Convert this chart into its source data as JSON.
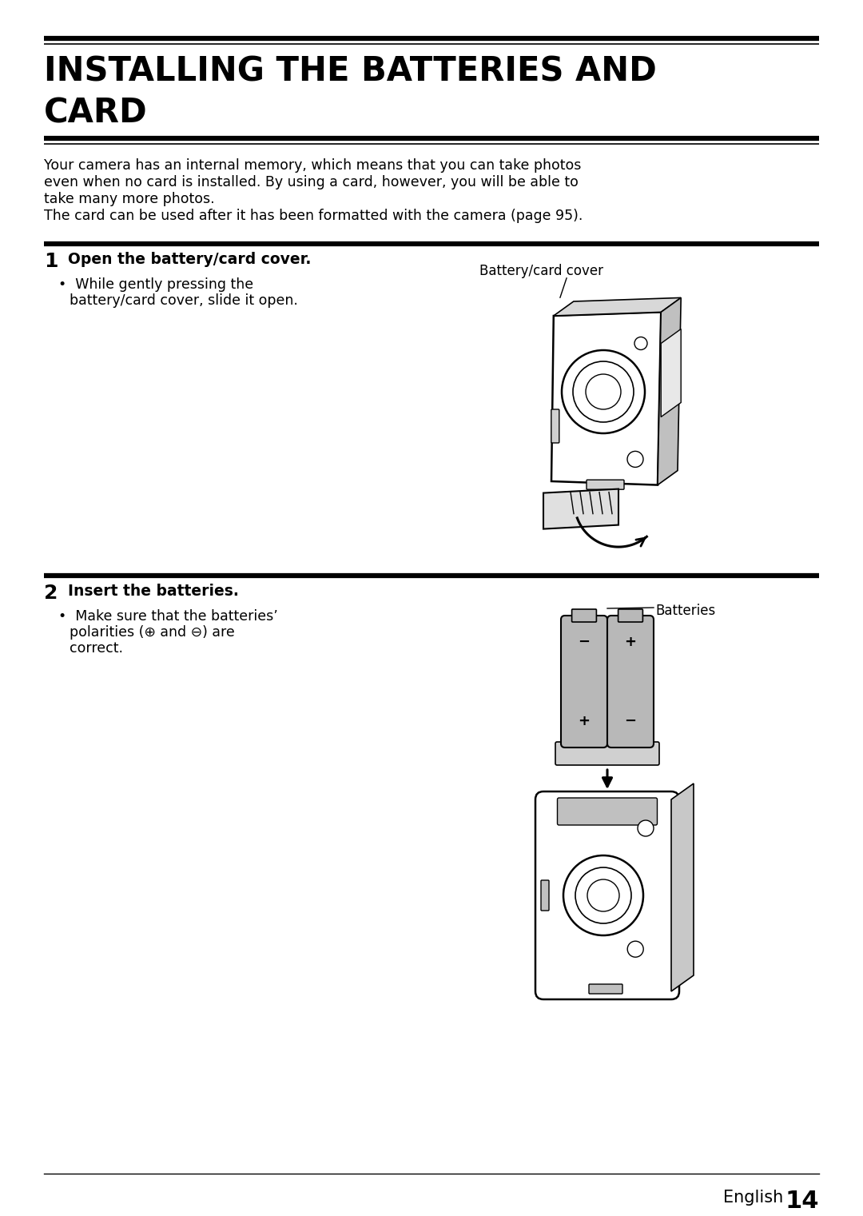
{
  "bg_color": "#ffffff",
  "title_line1": "INSTALLING THE BATTERIES AND",
  "title_line2": "CARD",
  "title_fontsize": 30,
  "body_lines": [
    "Your camera has an internal memory, which means that you can take photos",
    "even when no card is installed. By using a card, however, you will be able to",
    "take many more photos.",
    "The card can be used after it has been formatted with the camera (page 95)."
  ],
  "body_fontsize": 12.5,
  "step1_num": "1",
  "step1_title": "Open the battery/card cover.",
  "step1_title_fontsize": 13.5,
  "step1_bullet_lines": [
    "While gently pressing the",
    "battery/card cover, slide it open."
  ],
  "step1_bullet_fontsize": 12.5,
  "step1_label": "Battery/card cover",
  "step2_num": "2",
  "step2_title": "Insert the batteries.",
  "step2_title_fontsize": 13.5,
  "step2_bullet_lines": [
    "Make sure that the batteries’",
    "polarities (⊕ and ⊖) are",
    "correct."
  ],
  "step2_bullet_fontsize": 12.5,
  "step2_label": "Batteries",
  "footer_text": "English",
  "footer_num": "14",
  "footer_fontsize": 15,
  "line_color": "#000000",
  "text_color": "#000000",
  "gray_battery": "#b8b8b8",
  "gray_camera": "#e8e8e8"
}
